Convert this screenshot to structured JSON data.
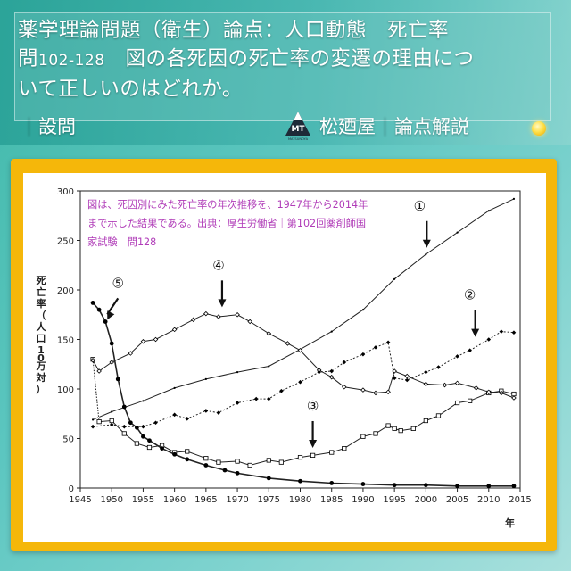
{
  "header": {
    "title_line1": "薬学理論問題（衛生）論点：人口動態　死亡率",
    "title_q_prefix": "問",
    "title_q_num": "102-128",
    "title_line2_rest": "　図の各死因の死亡率の変遷の理由につ",
    "title_line3": "いて正しいのはどれか。",
    "section_label": "｜設問",
    "brand_label": "松廼屋｜論点解説",
    "logo_text": "MT",
    "logo_subtext": "MATSUNOYA"
  },
  "colors": {
    "accent_teal": "#3fb8a8",
    "frame_orange": "#f5b70a",
    "note_purple": "#b03cb8"
  },
  "chart_note": {
    "line1": "図は、死因別にみた死亡率の年次推移を、1947年から2014年",
    "line2": "まで示した結果である。出典：厚生労働省｜第102回薬剤師国",
    "line3": "家試験　問128"
  },
  "chart_data": {
    "type": "line",
    "xlabel": "年",
    "ylabel": "死亡率（人口10万対）",
    "xlim": [
      1945,
      2015
    ],
    "ylim": [
      0,
      300
    ],
    "xticks": [
      1945,
      1950,
      1955,
      1960,
      1965,
      1970,
      1975,
      1980,
      1985,
      1990,
      1995,
      2000,
      2005,
      2010,
      2015
    ],
    "yticks": [
      0,
      50,
      100,
      150,
      200,
      250,
      300
    ],
    "grid": false,
    "series": [
      {
        "name": "①",
        "marker": "dot-small",
        "x": [
          1947,
          1950,
          1955,
          1960,
          1965,
          1970,
          1975,
          1980,
          1985,
          1990,
          1995,
          2000,
          2005,
          2010,
          2014
        ],
        "y": [
          69,
          77,
          88,
          101,
          110,
          117,
          123,
          140,
          158,
          180,
          211,
          236,
          258,
          280,
          292
        ]
      },
      {
        "name": "②",
        "marker": "diamond-filled",
        "x": [
          1947,
          1950,
          1952,
          1955,
          1957,
          1960,
          1962,
          1965,
          1967,
          1970,
          1973,
          1975,
          1977,
          1980,
          1983,
          1985,
          1987,
          1990,
          1992,
          1994,
          1995,
          1997,
          2000,
          2002,
          2005,
          2007,
          2010,
          2012,
          2014
        ],
        "y": [
          62,
          64,
          62,
          62,
          66,
          74,
          70,
          78,
          76,
          86,
          90,
          90,
          98,
          107,
          117,
          118,
          127,
          135,
          142,
          147,
          111,
          109,
          117,
          122,
          133,
          139,
          150,
          158,
          157
        ]
      },
      {
        "name": "③",
        "marker": "square-open",
        "x": [
          1947,
          1948,
          1950,
          1952,
          1954,
          1956,
          1958,
          1960,
          1962,
          1965,
          1967,
          1970,
          1972,
          1975,
          1977,
          1980,
          1982,
          1985,
          1987,
          1990,
          1992,
          1994,
          1995,
          1996,
          1998,
          2000,
          2002,
          2005,
          2007,
          2010,
          2012,
          2014
        ],
        "y": [
          130,
          67,
          68,
          55,
          45,
          41,
          43,
          36,
          37,
          30,
          26,
          27,
          23,
          28,
          26,
          31,
          33,
          36,
          40,
          52,
          55,
          63,
          60,
          58,
          60,
          68,
          73,
          86,
          88,
          96,
          98,
          95
        ]
      },
      {
        "name": "④",
        "marker": "diamond-open",
        "x": [
          1947,
          1948,
          1950,
          1953,
          1955,
          1957,
          1960,
          1963,
          1965,
          1967,
          1970,
          1972,
          1975,
          1978,
          1980,
          1983,
          1985,
          1987,
          1990,
          1992,
          1994,
          1995,
          1997,
          2000,
          2003,
          2005,
          2008,
          2010,
          2012,
          2014
        ],
        "y": [
          129,
          118,
          127,
          136,
          148,
          150,
          160,
          170,
          176,
          173,
          175,
          168,
          156,
          146,
          139,
          119,
          112,
          102,
          99,
          96,
          97,
          118,
          113,
          105,
          104,
          106,
          101,
          97,
          96,
          91
        ]
      },
      {
        "name": "⑤",
        "marker": "dot-large",
        "x": [
          1947,
          1948,
          1949,
          1950,
          1951,
          1952,
          1953,
          1954,
          1955,
          1956,
          1958,
          1960,
          1962,
          1965,
          1968,
          1970,
          1975,
          1980,
          1985,
          1990,
          1995,
          2000,
          2005,
          2010,
          2014
        ],
        "y": [
          187,
          180,
          168,
          146,
          110,
          82,
          66,
          61,
          52,
          48,
          40,
          34,
          29,
          23,
          18,
          15,
          10,
          7,
          5,
          4,
          3,
          3,
          2,
          2,
          2
        ]
      }
    ],
    "annotations": [
      {
        "label": "①",
        "x": 1999,
        "y": 275
      },
      {
        "label": "②",
        "x": 2007,
        "y": 185
      },
      {
        "label": "③",
        "x": 1982,
        "y": 73
      },
      {
        "label": "④",
        "x": 1967,
        "y": 215
      },
      {
        "label": "⑤",
        "x": 1951,
        "y": 197
      }
    ]
  }
}
